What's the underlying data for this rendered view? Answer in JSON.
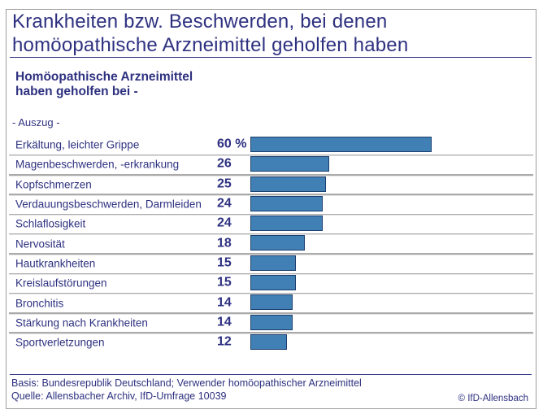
{
  "header": {
    "title_lines": [
      "Krankheiten bzw. Beschwerden, bei denen",
      "homöopathische Arzneimittel geholfen haben"
    ],
    "subtitle_lines": [
      "Homöopathische Arzneimittel",
      "haben geholfen bei -"
    ],
    "excerpt_note": "- Auszug -"
  },
  "chart_data": {
    "type": "bar",
    "orientation": "horizontal",
    "title": "Krankheiten bzw. Beschwerden, bei denen homöopathische Arzneimittel geholfen haben",
    "subtitle": "Homöopathische Arzneimittel haben geholfen bei - (Auszug)",
    "unit": "%",
    "categories": [
      "Erkältung, leichter Grippe",
      "Magenbeschwerden, -erkrankung",
      "Kopfschmerzen",
      "Verdauungsbeschwerden, Darmleiden",
      "Schlaflosigkeit",
      "Nervosität",
      "Hautkrankheiten",
      "Kreislaufstörungen",
      "Bronchitis",
      "Stärkung nach Krankheiten",
      "Sportverletzungen"
    ],
    "values": [
      60,
      26,
      25,
      24,
      24,
      18,
      15,
      15,
      14,
      14,
      12
    ],
    "value_labels": [
      "60 %",
      "26",
      "25",
      "24",
      "24",
      "18",
      "15",
      "15",
      "14",
      "14",
      "12"
    ],
    "xlabel": "",
    "ylabel": "",
    "xlim": [
      0,
      100
    ],
    "grid": false,
    "legend": false
  },
  "footer": {
    "basis": "Basis: Bundesrepublik Deutschland; Verwender homöopathischer Arzneimittel",
    "quelle": "Quelle: Allensbacher Archiv, IfD-Umfrage 10039",
    "copyright": "© IfD-Allensbach"
  },
  "colors": {
    "text_navy": "#2e3180",
    "bar_fill": "#4080b4",
    "bar_border": "#1c3e6e",
    "separator_gray": "#ababab",
    "frame_border": "#9e9e9e"
  }
}
